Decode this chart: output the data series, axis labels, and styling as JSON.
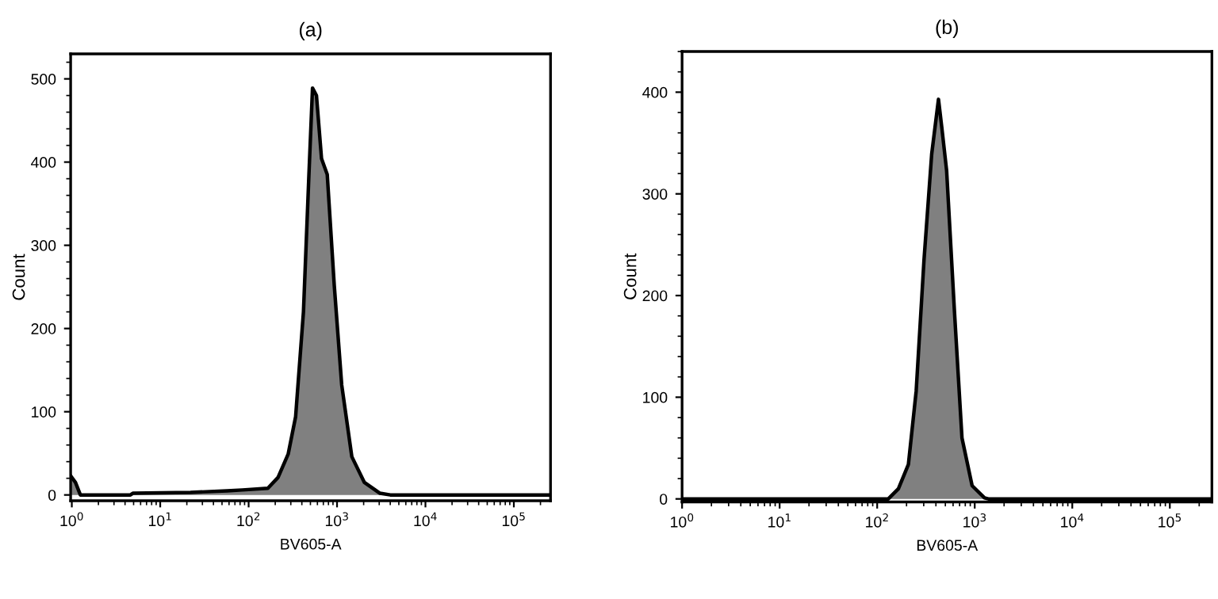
{
  "chart_data": [
    {
      "type": "area",
      "title": "(a)",
      "xlabel": "BV605-A",
      "ylabel": "Count",
      "log": "x",
      "grid": false,
      "legend": false,
      "x": [
        0.97,
        1.1,
        1.25,
        4.6,
        4.9,
        22,
        57,
        85,
        165,
        215,
        280,
        340,
        417,
        478,
        528,
        585,
        668,
        775,
        930,
        1130,
        1470,
        2040,
        3060,
        4000,
        260000
      ],
      "series": [
        {
          "color": "#808080",
          "values": [
            23,
            15,
            0,
            0,
            2,
            3,
            5,
            6,
            8,
            21,
            49,
            94,
            220,
            378,
            489,
            480,
            404,
            385,
            252,
            132,
            46,
            15,
            2,
            0,
            0
          ]
        }
      ],
      "xlim": [
        0.97,
        260000
      ],
      "xticks": [
        {
          "value": 1,
          "label": "10$^{0}$"
        },
        {
          "value": 10,
          "label": "10$^{1}$"
        },
        {
          "value": 100,
          "label": "10$^{2}$"
        },
        {
          "value": 1000,
          "label": "10$^{3}$"
        },
        {
          "value": 10000,
          "label": "10$^{4}$"
        },
        {
          "value": 100000,
          "label": "10$^{5}$"
        }
      ],
      "ylim": [
        -7,
        530
      ],
      "yticks": [
        0,
        100,
        200,
        300,
        400,
        500
      ]
    },
    {
      "type": "area",
      "title": "(b)",
      "xlabel": "BV605-A",
      "ylabel": "Count",
      "log": "x",
      "grid": false,
      "legend": false,
      "x": [
        1,
        130,
        165,
        209,
        251,
        302,
        362,
        425,
        460,
        515,
        620,
        740,
        940,
        1260,
        1380,
        270000
      ],
      "series": [
        {
          "color": "#808080",
          "values": [
            0,
            0,
            10,
            34,
            106,
            235,
            339,
            393,
            365,
            323,
            184,
            60,
            13,
            1,
            0,
            0
          ]
        }
      ],
      "xlim": [
        1,
        270000
      ],
      "xticks": [
        {
          "value": 1,
          "label": "10$^{0}$"
        },
        {
          "value": 10,
          "label": "10$^{1}$"
        },
        {
          "value": 100,
          "label": "10$^{2}$"
        },
        {
          "value": 1000,
          "label": "10$^{3}$"
        },
        {
          "value": 10000,
          "label": "10$^{4}$"
        },
        {
          "value": 100000,
          "label": "10$^{5}$"
        }
      ],
      "ylim": [
        -3,
        440
      ],
      "yticks": [
        0,
        100,
        200,
        300,
        400
      ]
    }
  ]
}
